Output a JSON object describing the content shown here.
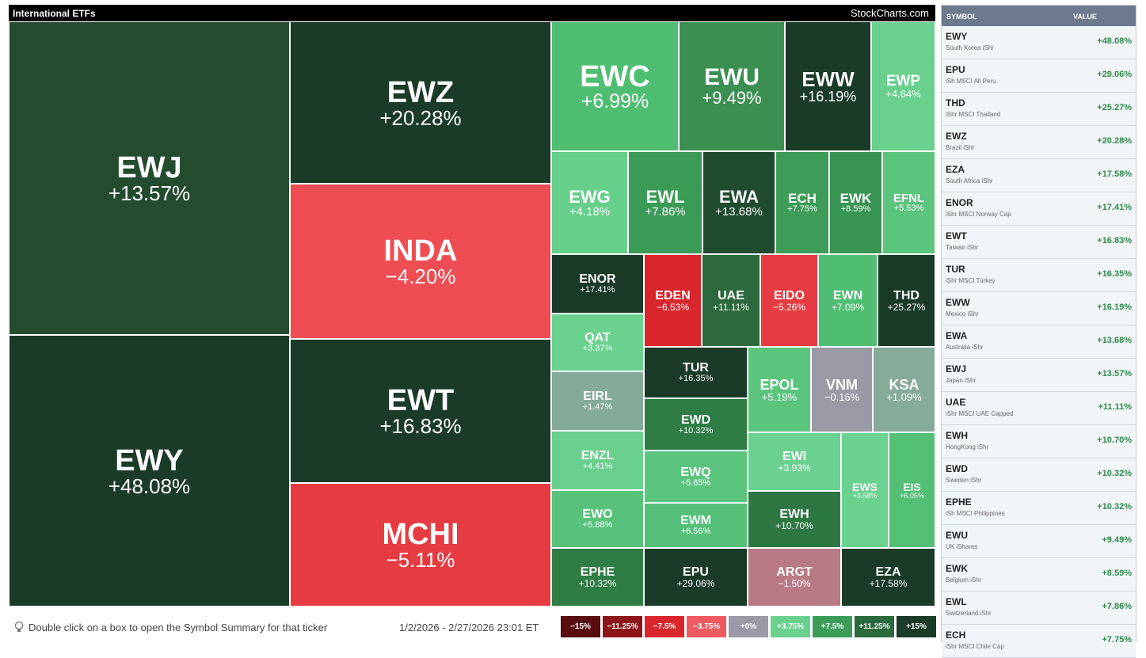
{
  "header": {
    "title": "International ETFs",
    "brand": "StockCharts.com"
  },
  "tiles": [
    {
      "symbol": "EWJ",
      "change": "+13.57%",
      "color": "#234c2f"
    },
    {
      "symbol": "EWY",
      "change": "+48.08%",
      "color": "#1a3b27"
    },
    {
      "symbol": "EWZ",
      "change": "+20.28%",
      "color": "#1a3b27"
    },
    {
      "symbol": "INDA",
      "change": "−4.20%",
      "color": "#ee4d53"
    },
    {
      "symbol": "EWT",
      "change": "+16.83%",
      "color": "#1a3b27"
    },
    {
      "symbol": "MCHI",
      "change": "−5.11%",
      "color": "#e73b42"
    },
    {
      "symbol": "EWC",
      "change": "+6.99%",
      "color": "#4fbe72"
    },
    {
      "symbol": "EWU",
      "change": "+9.49%",
      "color": "#3a8f51"
    },
    {
      "symbol": "EWW",
      "change": "+16.19%",
      "color": "#1a3b27"
    },
    {
      "symbol": "EWP",
      "change": "+4.64%",
      "color": "#69d08d"
    },
    {
      "symbol": "EWG",
      "change": "+4.18%",
      "color": "#66cf8a"
    },
    {
      "symbol": "EWL",
      "change": "+7.86%",
      "color": "#3b9a56"
    },
    {
      "symbol": "EWA",
      "change": "+13.68%",
      "color": "#204b2f"
    },
    {
      "symbol": "ECH",
      "change": "+7.75%",
      "color": "#3d9d58"
    },
    {
      "symbol": "EWK",
      "change": "+8.59%",
      "color": "#389452"
    },
    {
      "symbol": "EFNL",
      "change": "+5.53%",
      "color": "#5bc47d"
    },
    {
      "symbol": "ENOR",
      "change": "+17.41%",
      "color": "#1a3b27"
    },
    {
      "symbol": "EDEN",
      "change": "−6.53%",
      "color": "#d9262c"
    },
    {
      "symbol": "UAE",
      "change": "+11.11%",
      "color": "#2c6a3d"
    },
    {
      "symbol": "EIDO",
      "change": "−5.26%",
      "color": "#e63b42"
    },
    {
      "symbol": "EWN",
      "change": "+7.09%",
      "color": "#4fbe72"
    },
    {
      "symbol": "THD",
      "change": "+25.27%",
      "color": "#1a3b27"
    },
    {
      "symbol": "QAT",
      "change": "+3.37%",
      "color": "#6bd18f"
    },
    {
      "symbol": "TUR",
      "change": "+16.35%",
      "color": "#1a3b27"
    },
    {
      "symbol": "EPOL",
      "change": "+5.19%",
      "color": "#5bc47d"
    },
    {
      "symbol": "VNM",
      "change": "−0.16%",
      "color": "#999aa5"
    },
    {
      "symbol": "KSA",
      "change": "+1.09%",
      "color": "#86ab98"
    },
    {
      "symbol": "EIRL",
      "change": "+1.47%",
      "color": "#84ab98"
    },
    {
      "symbol": "EWD",
      "change": "+10.32%",
      "color": "#2e7d44"
    },
    {
      "symbol": "ENZL",
      "change": "+4.41%",
      "color": "#69d08d"
    },
    {
      "symbol": "EWI",
      "change": "+3.93%",
      "color": "#6bd18f"
    },
    {
      "symbol": "EWS",
      "change": "+3.68%",
      "color": "#6bd18f"
    },
    {
      "symbol": "EIS",
      "change": "+6.05%",
      "color": "#52bf75"
    },
    {
      "symbol": "EWQ",
      "change": "+5.65%",
      "color": "#5bc47d"
    },
    {
      "symbol": "EWO",
      "change": "+5.88%",
      "color": "#58c27a"
    },
    {
      "symbol": "EWH",
      "change": "+10.70%",
      "color": "#2d7842"
    },
    {
      "symbol": "EWM",
      "change": "+6.56%",
      "color": "#55c078"
    },
    {
      "symbol": "EPHE",
      "change": "+10.32%",
      "color": "#2e7d44"
    },
    {
      "symbol": "EPU",
      "change": "+29.06%",
      "color": "#1a3b27"
    },
    {
      "symbol": "ARGT",
      "change": "−1.50%",
      "color": "#b87a84"
    },
    {
      "symbol": "EZA",
      "change": "+17.58%",
      "color": "#1a3b27"
    }
  ],
  "table": {
    "columns": [
      "SYMBOL",
      "VALUE"
    ],
    "rows": [
      {
        "symbol": "EWY",
        "name": "South Korea iShr",
        "value": "+48.08%"
      },
      {
        "symbol": "EPU",
        "name": "iSh MSCI All Peru",
        "value": "+29.06%"
      },
      {
        "symbol": "THD",
        "name": "iShr MSCI Thailand",
        "value": "+25.27%"
      },
      {
        "symbol": "EWZ",
        "name": "Brazil iShr",
        "value": "+20.28%"
      },
      {
        "symbol": "EZA",
        "name": "South Africa iShr",
        "value": "+17.58%"
      },
      {
        "symbol": "ENOR",
        "name": "iShr MSCI Norway Cap",
        "value": "+17.41%"
      },
      {
        "symbol": "EWT",
        "name": "Taiwan iShr",
        "value": "+16.83%"
      },
      {
        "symbol": "TUR",
        "name": "iShr MSCI Turkey",
        "value": "+16.35%"
      },
      {
        "symbol": "EWW",
        "name": "Mexico iShr",
        "value": "+16.19%"
      },
      {
        "symbol": "EWA",
        "name": "Australia iShr",
        "value": "+13.68%"
      },
      {
        "symbol": "EWJ",
        "name": "Japan iShr",
        "value": "+13.57%"
      },
      {
        "symbol": "UAE",
        "name": "iShr MSCI UAE Capped",
        "value": "+11.11%"
      },
      {
        "symbol": "EWH",
        "name": "HongKong iShr",
        "value": "+10.70%"
      },
      {
        "symbol": "EWD",
        "name": "Sweden iShr",
        "value": "+10.32%"
      },
      {
        "symbol": "EPHE",
        "name": "iSh MSCI Philippines",
        "value": "+10.32%"
      },
      {
        "symbol": "EWU",
        "name": "UK iShares",
        "value": "+9.49%"
      },
      {
        "symbol": "EWK",
        "name": "Belgium iShr",
        "value": "+8.59%"
      },
      {
        "symbol": "EWL",
        "name": "Switzerland iShr",
        "value": "+7.86%"
      },
      {
        "symbol": "ECH",
        "name": "iShr MSCI Chile Cap",
        "value": "+7.75%"
      }
    ]
  },
  "footer": {
    "hint": "Double click on a box to open the Symbol Summary for that ticker",
    "date_range": "1/2/2026 - 2/27/2026 23:01 ET",
    "legend": [
      {
        "label": "−15%",
        "color": "#5a0d10"
      },
      {
        "label": "−11.25%",
        "color": "#8d1519"
      },
      {
        "label": "−7.5%",
        "color": "#d9262c"
      },
      {
        "label": "−3.75%",
        "color": "#ef5a60"
      },
      {
        "label": "+0%",
        "color": "#999aa5"
      },
      {
        "label": "+3.75%",
        "color": "#6bd18f"
      },
      {
        "label": "+7.5%",
        "color": "#3d9d58"
      },
      {
        "label": "+11.25%",
        "color": "#2a6a3c"
      },
      {
        "label": "+15%",
        "color": "#1a3b27"
      }
    ]
  }
}
